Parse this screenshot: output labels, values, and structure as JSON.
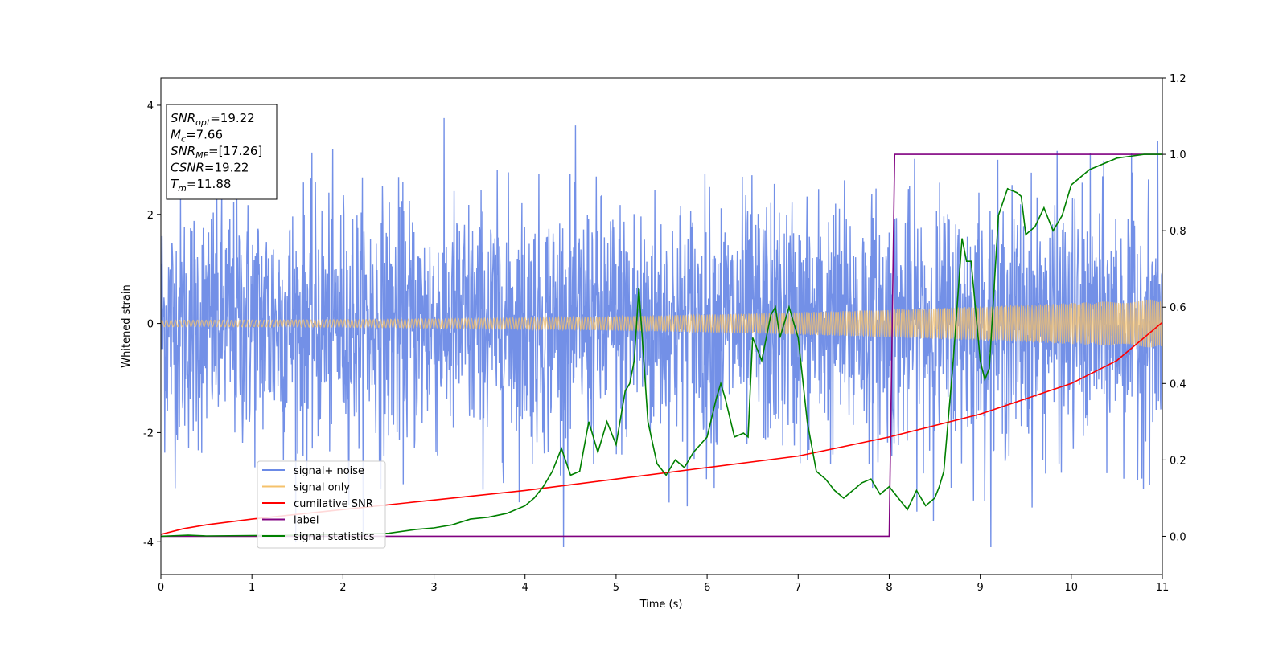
{
  "chart_data": {
    "type": "line",
    "xlabel": "Time (s)",
    "ylabel": "Whitened strain",
    "xlim": [
      0,
      11
    ],
    "ylim": [
      -4.6,
      4.5
    ],
    "y2lim": [
      -0.1,
      1.2
    ],
    "x_ticks": [
      0,
      1,
      2,
      3,
      4,
      5,
      6,
      7,
      8,
      9,
      10,
      11
    ],
    "y_ticks": [
      -4,
      -2,
      0,
      2,
      4
    ],
    "y2_ticks": [
      "0.0",
      "0.2",
      "0.4",
      "0.6",
      "0.8",
      "1.0",
      "1.2"
    ],
    "grid": false,
    "legend_position": "lower-left",
    "annotation": {
      "lines": [
        {
          "base": "SNR",
          "sub": "opt",
          "rest": "=19.22"
        },
        {
          "base": "M",
          "sub": "c",
          "rest": "=7.66"
        },
        {
          "base": "SNR",
          "sub": "MF",
          "rest": "=[17.26]"
        },
        {
          "base": "CSNR",
          "sub": "",
          "rest": "=19.22"
        },
        {
          "base": "T",
          "sub": "m",
          "rest": "=11.88"
        }
      ]
    },
    "series": [
      {
        "name": "signal+ noise",
        "axis": "left",
        "color": "#6b8ae6",
        "kind": "noise",
        "sigma": 1.15,
        "x_range": [
          0,
          11
        ]
      },
      {
        "name": "signal only",
        "axis": "left",
        "color": "#f5c26b",
        "kind": "chirp",
        "amplitude_start": 0.06,
        "amplitude_end": 0.45,
        "x_range": [
          0,
          11
        ]
      },
      {
        "name": "cumilative SNR",
        "axis": "right",
        "color": "#ff0000",
        "x": [
          0,
          0.25,
          0.5,
          1,
          2,
          3,
          4,
          5,
          6,
          7,
          8,
          9,
          10,
          10.5,
          11
        ],
        "y": [
          0.005,
          0.02,
          0.03,
          0.045,
          0.07,
          0.095,
          0.12,
          0.15,
          0.18,
          0.21,
          0.26,
          0.32,
          0.4,
          0.46,
          0.56
        ]
      },
      {
        "name": "label",
        "axis": "right",
        "color": "#800080",
        "x": [
          0,
          8.0,
          8.06,
          11
        ],
        "y": [
          0.0,
          0.0,
          1.0,
          1.0
        ]
      },
      {
        "name": "signal statistics",
        "axis": "right",
        "color": "#008000",
        "x": [
          0,
          0.3,
          0.5,
          1,
          1.5,
          2,
          2.5,
          2.8,
          3,
          3.2,
          3.4,
          3.6,
          3.8,
          4,
          4.1,
          4.2,
          4.3,
          4.4,
          4.5,
          4.6,
          4.7,
          4.75,
          4.8,
          4.9,
          5.0,
          5.1,
          5.15,
          5.2,
          5.25,
          5.35,
          5.45,
          5.55,
          5.65,
          5.75,
          5.85,
          6.0,
          6.1,
          6.15,
          6.2,
          6.3,
          6.4,
          6.45,
          6.5,
          6.6,
          6.7,
          6.75,
          6.8,
          6.9,
          7.0,
          7.1,
          7.2,
          7.3,
          7.4,
          7.5,
          7.6,
          7.7,
          7.8,
          7.9,
          8.0,
          8.1,
          8.2,
          8.3,
          8.4,
          8.5,
          8.55,
          8.6,
          8.7,
          8.8,
          8.85,
          8.9,
          9.0,
          9.05,
          9.1,
          9.2,
          9.3,
          9.4,
          9.45,
          9.5,
          9.6,
          9.7,
          9.8,
          9.9,
          10.0,
          10.2,
          10.5,
          10.8,
          11.0
        ],
        "y": [
          0.0,
          0.003,
          0.001,
          0.002,
          0.003,
          0.005,
          0.008,
          0.018,
          0.022,
          0.03,
          0.045,
          0.05,
          0.06,
          0.08,
          0.1,
          0.13,
          0.17,
          0.23,
          0.16,
          0.17,
          0.3,
          0.26,
          0.22,
          0.3,
          0.24,
          0.38,
          0.4,
          0.46,
          0.65,
          0.3,
          0.19,
          0.16,
          0.2,
          0.18,
          0.22,
          0.26,
          0.36,
          0.4,
          0.36,
          0.26,
          0.27,
          0.26,
          0.52,
          0.46,
          0.58,
          0.6,
          0.52,
          0.6,
          0.52,
          0.3,
          0.17,
          0.15,
          0.12,
          0.1,
          0.12,
          0.14,
          0.15,
          0.11,
          0.13,
          0.1,
          0.07,
          0.12,
          0.08,
          0.1,
          0.13,
          0.17,
          0.45,
          0.78,
          0.72,
          0.72,
          0.46,
          0.41,
          0.44,
          0.84,
          0.91,
          0.9,
          0.89,
          0.79,
          0.81,
          0.86,
          0.8,
          0.84,
          0.92,
          0.96,
          0.99,
          1.0,
          1.0
        ]
      }
    ]
  }
}
